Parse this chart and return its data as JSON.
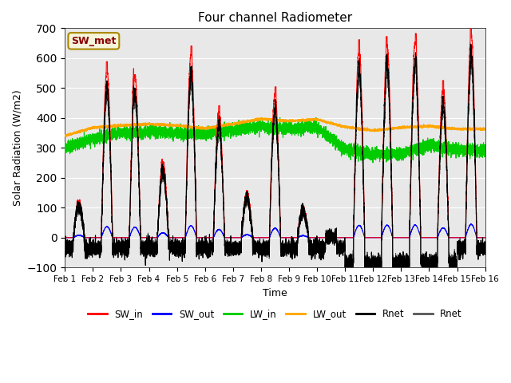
{
  "title": "Four channel Radiometer",
  "xlabel": "Time",
  "ylabel": "Solar Radiation (W/m2)",
  "xlim": [
    0,
    15
  ],
  "ylim": [
    -100,
    700
  ],
  "yticks": [
    -100,
    0,
    100,
    200,
    300,
    400,
    500,
    600,
    700
  ],
  "xtick_labels": [
    "Feb 1",
    "Feb 2",
    "Feb 3",
    "Feb 4",
    "Feb 5",
    "Feb 6",
    "Feb 7",
    "Feb 8",
    "Feb 9",
    "Feb 10",
    "Feb 11",
    "Feb 12",
    "Feb 13",
    "Feb 14",
    "Feb 15",
    "Feb 16"
  ],
  "background_color": "#e8e8e8",
  "annotation_text": "SW_met",
  "annotation_color": "#8b0000",
  "annotation_bg": "#f5f5dc",
  "series": {
    "SW_in": {
      "color": "#ff0000",
      "lw": 0.8
    },
    "SW_out": {
      "color": "#0000ff",
      "lw": 0.8
    },
    "LW_in": {
      "color": "#00cc00",
      "lw": 0.8
    },
    "LW_out": {
      "color": "#ffa500",
      "lw": 0.8
    },
    "Rnet1": {
      "color": "#000000",
      "lw": 0.8
    },
    "Rnet2": {
      "color": "#555555",
      "lw": 0.8
    }
  },
  "legend_entries": [
    "SW_in",
    "SW_out",
    "LW_in",
    "LW_out",
    "Rnet",
    "Rnet"
  ],
  "legend_colors": [
    "#ff0000",
    "#0000ff",
    "#00cc00",
    "#ffa500",
    "#000000",
    "#555555"
  ],
  "day_peaks_SW_in": [
    120,
    560,
    540,
    250,
    610,
    420,
    150,
    480,
    100,
    5,
    630,
    640,
    650,
    500,
    680
  ],
  "lw_in_base": [
    300,
    330,
    350,
    355,
    350,
    345,
    360,
    370,
    365,
    370,
    295,
    278,
    282,
    308,
    293
  ],
  "lw_out_base": [
    340,
    368,
    375,
    380,
    375,
    365,
    380,
    397,
    390,
    395,
    370,
    358,
    368,
    373,
    363
  ]
}
